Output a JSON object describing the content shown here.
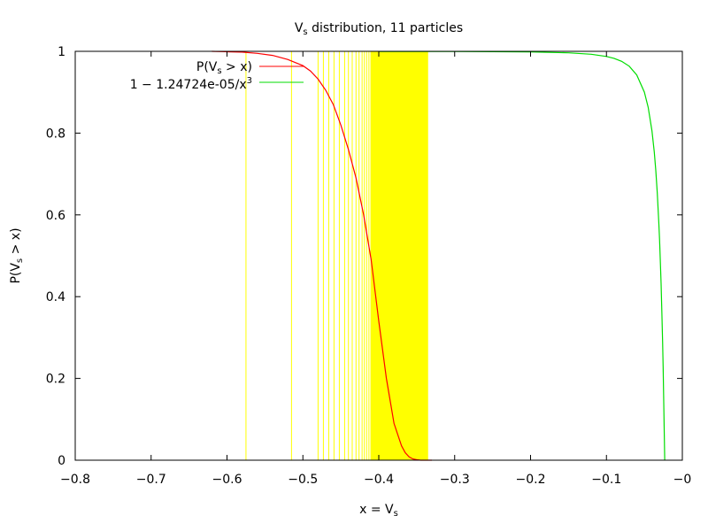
{
  "chart_data": {
    "type": "line",
    "title": "Vs distribution, 11 particles",
    "xlabel": "x = Vs",
    "ylabel": "P(Vs > x)",
    "xlim": [
      -0.8,
      0
    ],
    "ylim": [
      0,
      1
    ],
    "grid": false,
    "legend_position": "top-left",
    "x_ticks": [
      -0.8,
      -0.7,
      -0.6,
      -0.5,
      -0.4,
      -0.3,
      -0.2,
      -0.1,
      0
    ],
    "x_tick_labels": [
      "−0.8",
      "−0.7",
      "−0.6",
      "−0.5",
      "−0.4",
      "−0.3",
      "−0.2",
      "−0.1",
      "−0"
    ],
    "y_ticks": [
      0,
      0.2,
      0.4,
      0.6,
      0.8,
      1
    ],
    "y_tick_labels": [
      "0",
      "0.2",
      "0.4",
      "0.6",
      "0.8",
      "1"
    ],
    "series": [
      {
        "name": "P(Vs > x)",
        "color": "#ff0000",
        "x": [
          -0.62,
          -0.6,
          -0.58,
          -0.56,
          -0.54,
          -0.52,
          -0.5,
          -0.49,
          -0.48,
          -0.47,
          -0.46,
          -0.45,
          -0.44,
          -0.43,
          -0.42,
          -0.41,
          -0.4,
          -0.39,
          -0.38,
          -0.37,
          -0.365,
          -0.36,
          -0.355,
          -0.35,
          -0.345,
          -0.34,
          -0.33
        ],
        "y": [
          1.0,
          0.999,
          0.998,
          0.995,
          0.99,
          0.98,
          0.965,
          0.952,
          0.932,
          0.905,
          0.87,
          0.82,
          0.76,
          0.69,
          0.6,
          0.49,
          0.34,
          0.2,
          0.09,
          0.035,
          0.018,
          0.008,
          0.003,
          0.001,
          0.0,
          0.0,
          0.0
        ]
      },
      {
        "name": "1 − 1.24724e-05/x³",
        "color": "#00dd00",
        "x": [
          -0.4,
          -0.3,
          -0.2,
          -0.15,
          -0.12,
          -0.1,
          -0.09,
          -0.08,
          -0.07,
          -0.06,
          -0.05,
          -0.045,
          -0.04,
          -0.037,
          -0.035,
          -0.033,
          -0.031,
          -0.03,
          -0.029,
          -0.028,
          -0.027,
          -0.026,
          -0.0253,
          -0.0232
        ],
        "y": [
          0.99981,
          0.99954,
          0.99844,
          0.9963,
          0.99278,
          0.98753,
          0.98289,
          0.97564,
          0.96364,
          0.94226,
          0.90022,
          0.86313,
          0.80512,
          0.75378,
          0.7091,
          0.65295,
          0.58133,
          0.53805,
          0.48865,
          0.43191,
          0.36643,
          0.29033,
          0.22987,
          0.0
        ]
      }
    ],
    "vertical_lines": {
      "color": "#ffff00",
      "x": [
        -0.575,
        -0.515,
        -0.48,
        -0.473,
        -0.466,
        -0.459,
        -0.452,
        -0.445,
        -0.44,
        -0.435,
        -0.43,
        -0.426,
        -0.422,
        -0.419,
        -0.416,
        -0.413
      ]
    },
    "shaded_band": {
      "color": "#ffff00",
      "x_range": [
        -0.411,
        -0.335
      ]
    }
  }
}
